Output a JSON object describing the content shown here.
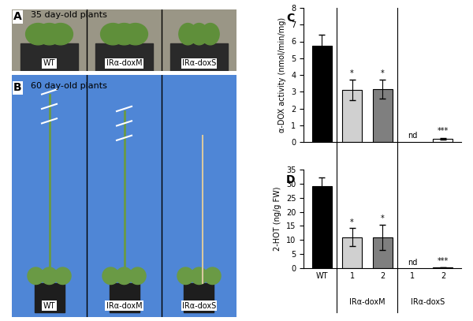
{
  "panels": [
    {
      "letter": "A",
      "title": "35 day-old plants",
      "labels": [
        "WT",
        "IRα-doxM",
        "IRα-doxS"
      ]
    },
    {
      "letter": "B",
      "title": "60 day-old plants",
      "labels": [
        "WT",
        "IRα-doxM",
        "IRα-doxS"
      ]
    }
  ],
  "chart_data": [
    {
      "letter": "C",
      "type": "bar",
      "y_label": "α-DOX activity (nmol/min/mg)",
      "categories": [
        "WT",
        "1",
        "2",
        "1",
        "2"
      ],
      "values": [
        5.75,
        3.1,
        3.15,
        null,
        0.2
      ],
      "errors": [
        0.65,
        0.6,
        0.55,
        null,
        0.05
      ],
      "colors": [
        "#000000",
        "#d0d0d0",
        "#7f7f7f",
        "#ffffff",
        "#ffffff"
      ],
      "ylim": [
        0,
        8
      ],
      "yticks": [
        0,
        1,
        2,
        3,
        4,
        5,
        6,
        7,
        8
      ],
      "tick_labels": "y",
      "annotations": [
        {
          "index": 1,
          "text": "*"
        },
        {
          "index": 2,
          "text": "*"
        },
        {
          "index": 3,
          "text": "nd"
        },
        {
          "index": 4,
          "text": "***"
        }
      ]
    },
    {
      "letter": "D",
      "type": "bar",
      "y_label": "2-HOT (ng/g FW)",
      "categories": [
        "WT",
        "1",
        "2",
        "1",
        "2"
      ],
      "values": [
        29,
        11,
        11,
        null,
        0.3
      ],
      "errors": [
        3.2,
        3.2,
        4.5,
        null,
        0.1
      ],
      "colors": [
        "#000000",
        "#d0d0d0",
        "#7f7f7f",
        "#ffffff",
        "#ffffff"
      ],
      "ylim": [
        0,
        35
      ],
      "yticks": [
        0,
        5,
        10,
        15,
        20,
        25,
        30,
        35
      ],
      "annotations": [
        {
          "index": 1,
          "text": "*"
        },
        {
          "index": 2,
          "text": "*"
        },
        {
          "index": 3,
          "text": "nd"
        },
        {
          "index": 4,
          "text": "***"
        }
      ],
      "groups": [
        {
          "label": "IRα-doxM",
          "indices": [
            1,
            2
          ]
        },
        {
          "label": "IRα-doxS",
          "indices": [
            3,
            4
          ]
        }
      ]
    }
  ]
}
